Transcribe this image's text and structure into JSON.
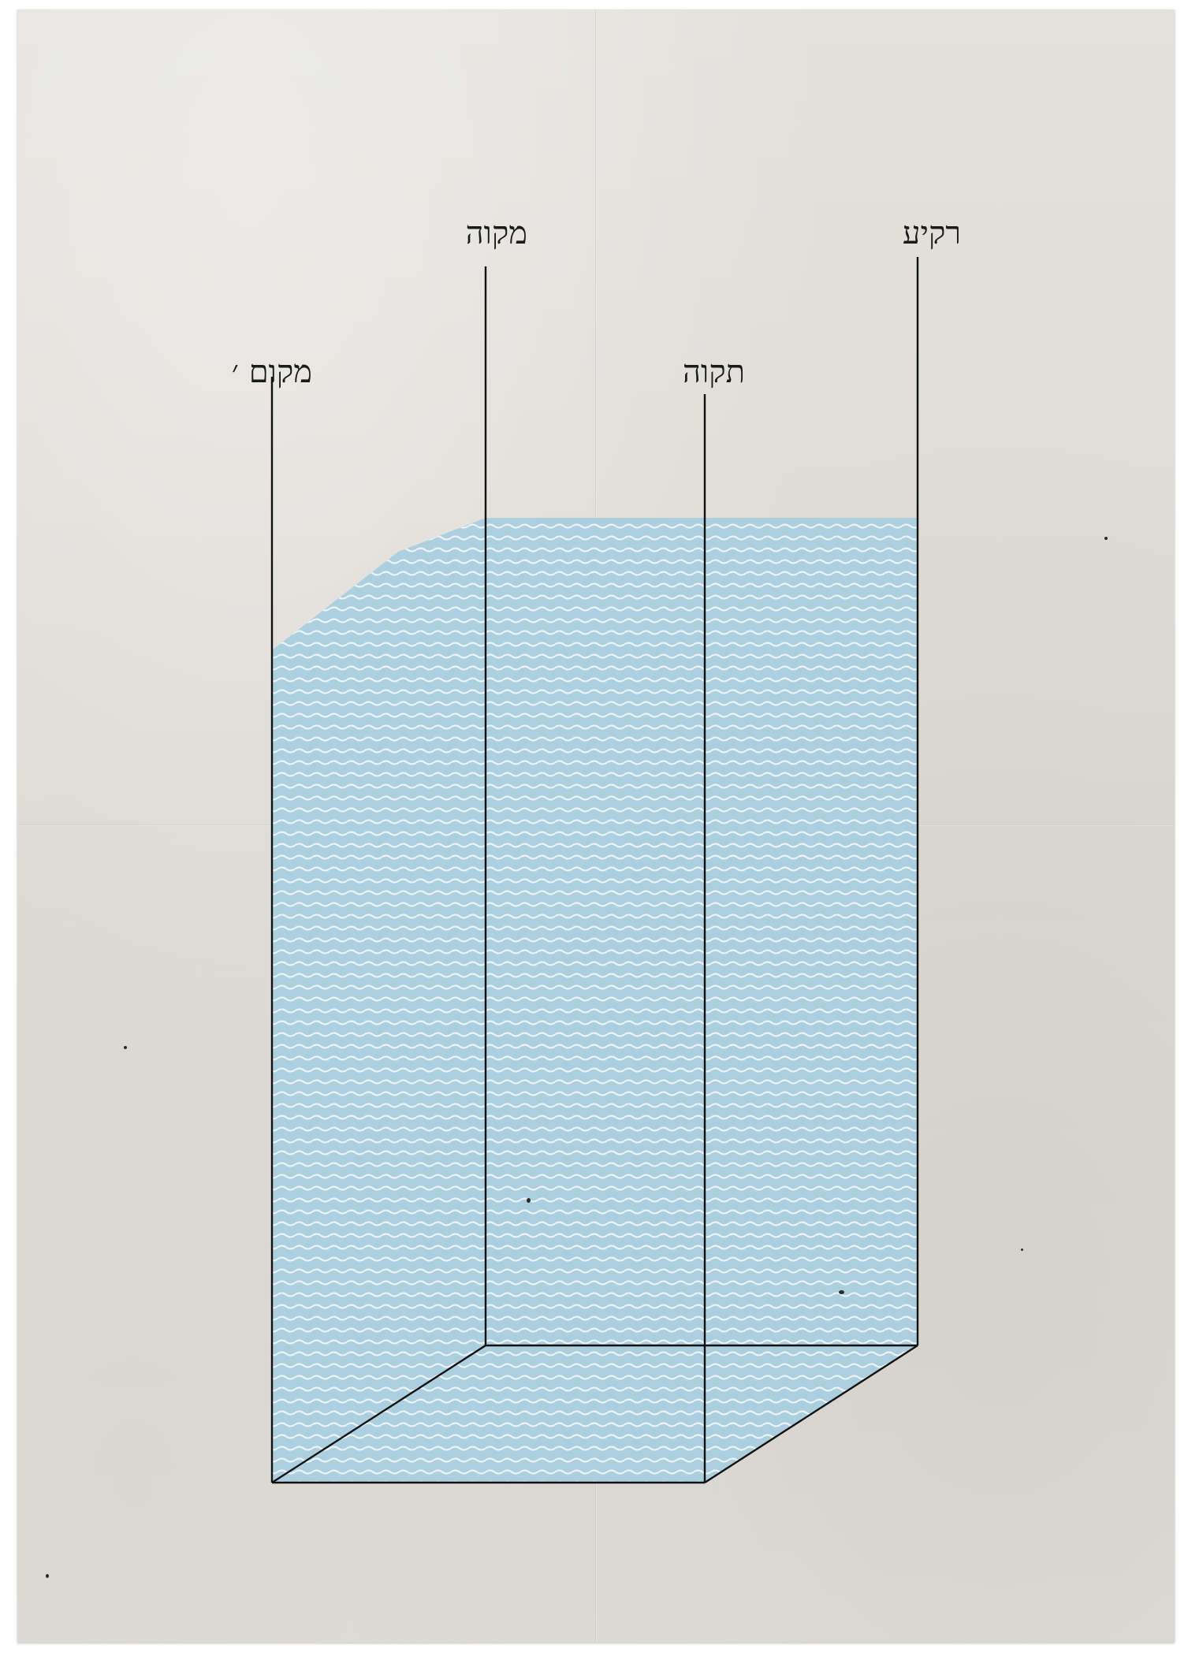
{
  "labels": {
    "mikom": "מקום ׳",
    "mikve": "מקוה",
    "tikva": "תקוה",
    "rakia": "רקיע"
  },
  "colors": {
    "water": "#a9cfe0",
    "wave": "#eef4f7",
    "line": "#111111",
    "paper": "#dfddd8"
  }
}
